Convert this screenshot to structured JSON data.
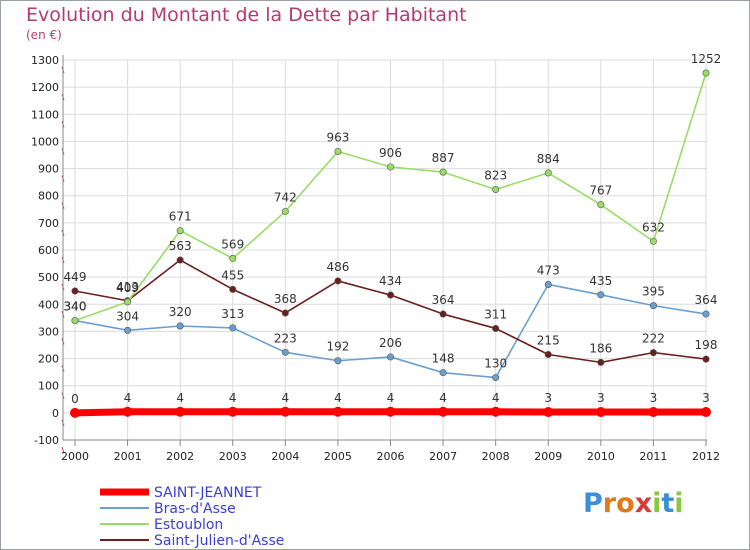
{
  "chart_data": {
    "type": "line",
    "title": "Evolution du Montant de la Dette par Habitant",
    "subtitle": "(en €)",
    "x": [
      "2000",
      "2001",
      "2002",
      "2003",
      "2004",
      "2005",
      "2006",
      "2007",
      "2008",
      "2009",
      "2010",
      "2011",
      "2012"
    ],
    "ylim": [
      -100,
      1300
    ],
    "yticks": [
      -100,
      0,
      100,
      200,
      300,
      400,
      500,
      600,
      700,
      800,
      900,
      1000,
      1100,
      1200,
      1300
    ],
    "grid": true,
    "legend_position": "bottom-left",
    "series": [
      {
        "name": "SAINT-JEANNET",
        "color": "#ff0000",
        "values": [
          0,
          4,
          4,
          4,
          4,
          4,
          4,
          4,
          4,
          3,
          3,
          3,
          3
        ]
      },
      {
        "name": "Bras-d'Asse",
        "color": "#6aa0d0",
        "values": [
          340,
          304,
          320,
          313,
          223,
          192,
          206,
          148,
          130,
          473,
          435,
          395,
          364
        ]
      },
      {
        "name": "Estoublon",
        "color": "#99dd66",
        "values": [
          340,
          409,
          671,
          569,
          742,
          963,
          906,
          887,
          823,
          884,
          767,
          632,
          1252
        ]
      },
      {
        "name": "Saint-Julien-d'Asse",
        "color": "#6b1f1f",
        "values": [
          449,
          413,
          563,
          455,
          368,
          486,
          434,
          364,
          311,
          215,
          186,
          222,
          198
        ]
      }
    ]
  },
  "logo": {
    "text": "Proxiti"
  }
}
